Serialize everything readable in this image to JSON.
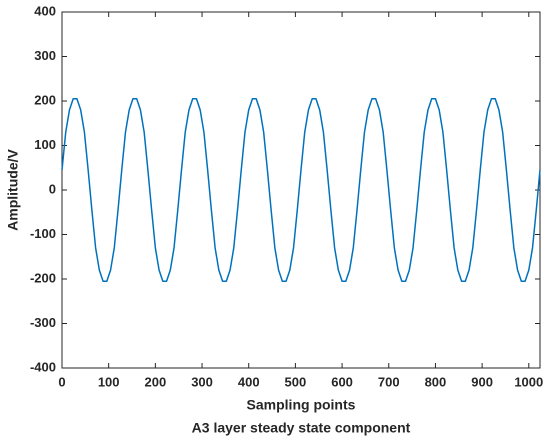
{
  "chart_data": {
    "type": "line",
    "xlabel": "Sampling points",
    "caption": "A3 layer steady state component",
    "ylabel": "Amplitude/V",
    "xlim": [
      0,
      1024
    ],
    "ylim": [
      -400,
      400
    ],
    "xticks": [
      0,
      100,
      200,
      300,
      400,
      500,
      600,
      700,
      800,
      900,
      1000
    ],
    "yticks": [
      -400,
      -300,
      -200,
      -100,
      0,
      100,
      200,
      300,
      400
    ],
    "x": [
      0,
      8,
      16,
      24,
      32,
      40,
      48,
      56,
      64,
      72,
      80,
      88,
      96,
      104,
      112,
      120,
      128,
      136,
      144,
      152,
      160,
      168,
      176,
      184,
      192,
      200,
      208,
      216,
      224,
      232,
      240,
      248,
      256,
      264,
      272,
      280,
      288,
      296,
      304,
      312,
      320,
      328,
      336,
      344,
      352,
      360,
      368,
      376,
      384,
      392,
      400,
      408,
      416,
      424,
      432,
      440,
      448,
      456,
      464,
      472,
      480,
      488,
      496,
      504,
      512,
      520,
      528,
      536,
      544,
      552,
      560,
      568,
      576,
      584,
      592,
      600,
      608,
      616,
      624,
      632,
      640,
      648,
      656,
      664,
      672,
      680,
      688,
      696,
      704,
      712,
      720,
      728,
      736,
      744,
      752,
      760,
      768,
      776,
      784,
      792,
      800,
      808,
      816,
      824,
      832,
      840,
      848,
      856,
      864,
      872,
      880,
      888,
      896,
      904,
      912,
      920,
      928,
      936,
      944,
      952,
      960,
      968,
      976,
      984,
      992,
      1000,
      1008,
      1016,
      1024
    ],
    "series": [
      {
        "color": "#0072bd",
        "values": [
          45,
          130,
          180,
          205,
          205,
          180,
          130,
          45,
          -45,
          -130,
          -180,
          -205,
          -205,
          -180,
          -130,
          -45,
          45,
          130,
          180,
          205,
          205,
          180,
          130,
          45,
          -45,
          -130,
          -180,
          -205,
          -205,
          -180,
          -130,
          -45,
          45,
          130,
          180,
          205,
          205,
          180,
          130,
          45,
          -45,
          -130,
          -180,
          -205,
          -205,
          -180,
          -130,
          -45,
          45,
          130,
          180,
          205,
          205,
          180,
          130,
          45,
          -45,
          -130,
          -180,
          -205,
          -205,
          -180,
          -130,
          -45,
          45,
          130,
          180,
          205,
          205,
          180,
          130,
          45,
          -45,
          -130,
          -180,
          -205,
          -205,
          -180,
          -130,
          -45,
          45,
          130,
          180,
          205,
          205,
          180,
          130,
          45,
          -45,
          -130,
          -180,
          -205,
          -205,
          -180,
          -130,
          -45,
          45,
          130,
          180,
          205,
          205,
          180,
          130,
          45,
          -45,
          -130,
          -180,
          -205,
          -205,
          -180,
          -130,
          -45,
          45,
          130,
          180,
          205,
          205,
          180,
          130,
          45,
          -45,
          -130,
          -180,
          -205,
          -205,
          -180,
          -130,
          -45,
          45
        ]
      }
    ]
  }
}
